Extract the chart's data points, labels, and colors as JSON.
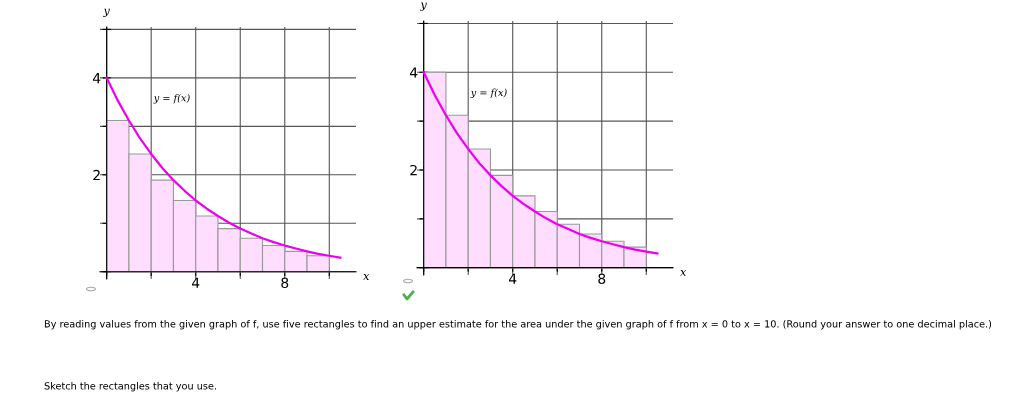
{
  "chart_data": [
    {
      "type": "histogram",
      "xlabel": "x",
      "ylabel": "y",
      "xlim": [
        -0.3,
        11.2
      ],
      "ylim": [
        -0.15,
        5.05
      ],
      "xticks": [
        {
          "value": 0,
          "label": null
        },
        {
          "value": 2,
          "label": null
        },
        4,
        {
          "value": 6,
          "label": null
        },
        8,
        {
          "value": 10,
          "label": null
        }
      ],
      "yticks": [
        {
          "value": 0,
          "label": null
        },
        {
          "value": 1,
          "label": null
        },
        2,
        {
          "value": 3,
          "label": null
        },
        4,
        {
          "value": 5,
          "label": null
        }
      ],
      "grid": true,
      "annotations": [
        "y = f(x)"
      ],
      "series": [
        {
          "type": "histogram",
          "color": "#ffddff",
          "bins": [
            0,
            1,
            2,
            3,
            4,
            5,
            6,
            7,
            8,
            9,
            10
          ],
          "values": [
            3.12,
            2.43,
            1.89,
            1.47,
            1.15,
            0.89,
            0.69,
            0.54,
            0.42,
            0.33
          ]
        },
        {
          "type": "line",
          "color": "#ee00ee",
          "x": [
            0,
            0.5,
            1,
            1.5,
            2,
            2.5,
            3,
            3.5,
            4,
            4.5,
            5,
            5.5,
            6,
            6.5,
            7,
            7.5,
            8,
            8.5,
            9,
            9.5,
            10,
            10.5
          ],
          "values": [
            4,
            3.53,
            3.12,
            2.75,
            2.43,
            2.14,
            1.89,
            1.67,
            1.47,
            1.3,
            1.15,
            1.01,
            0.89,
            0.79,
            0.69,
            0.61,
            0.54,
            0.48,
            0.42,
            0.37,
            0.33,
            0.29
          ]
        }
      ]
    },
    {
      "type": "histogram",
      "xlabel": "x",
      "ylabel": "y",
      "xlim": [
        -0.3,
        11.2
      ],
      "ylim": [
        -0.15,
        5.05
      ],
      "xticks": [
        {
          "value": 0,
          "label": null
        },
        {
          "value": 2,
          "label": null
        },
        4,
        {
          "value": 6,
          "label": null
        },
        8,
        {
          "value": 10,
          "label": null
        }
      ],
      "yticks": [
        {
          "value": 0,
          "label": null
        },
        {
          "value": 1,
          "label": null
        },
        2,
        {
          "value": 3,
          "label": null
        },
        4,
        {
          "value": 5,
          "label": null
        }
      ],
      "grid": true,
      "annotations": [
        "y = f(x)"
      ],
      "series": [
        {
          "type": "histogram",
          "color": "#ffddff",
          "bins": [
            0,
            1,
            2,
            3,
            4,
            5,
            6,
            7,
            8,
            9,
            10
          ],
          "values": [
            4,
            3.12,
            2.43,
            1.89,
            1.47,
            1.15,
            0.89,
            0.69,
            0.54,
            0.42
          ]
        },
        {
          "type": "line",
          "color": "#ee00ee",
          "x": [
            0,
            0.5,
            1,
            1.5,
            2,
            2.5,
            3,
            3.5,
            4,
            4.5,
            5,
            5.5,
            6,
            6.5,
            7,
            7.5,
            8,
            8.5,
            9,
            9.5,
            10,
            10.5
          ],
          "values": [
            4,
            3.53,
            3.12,
            2.75,
            2.43,
            2.14,
            1.89,
            1.67,
            1.47,
            1.3,
            1.15,
            1.01,
            0.89,
            0.79,
            0.69,
            0.61,
            0.54,
            0.48,
            0.42,
            0.37,
            0.33,
            0.29
          ]
        }
      ]
    },
    {
      "type": "other",
      "annotations": [
        "By reading values from the given graph of f, use five rectangles to find an upper estimate for the area under the given graph of f from x = 0 to x = 10. (Round your answer to one decimal place.)",
        "Sketch the rectangles that you use."
      ]
    }
  ]
}
